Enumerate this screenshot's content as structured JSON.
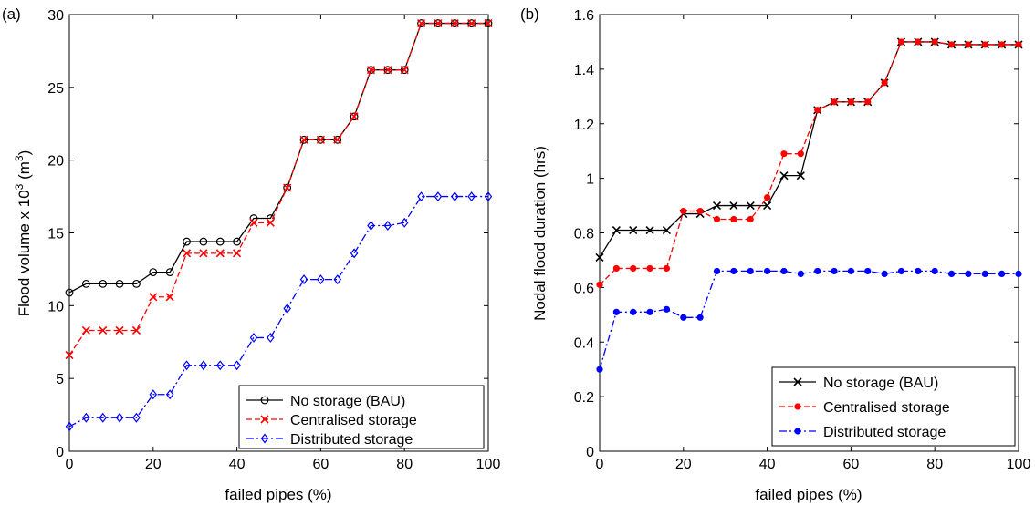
{
  "charts": [
    {
      "panel_label": "(a)",
      "ylabel_main": "Flood volume x 10",
      "ylabel_sup": "3",
      "ylabel_rest": " (m",
      "ylabel_sup2": "3",
      "ylabel_end": ")"
    },
    {
      "panel_label": "(b)",
      "ylabel": "Nodal flood duration (hrs)"
    }
  ],
  "chart_data": [
    {
      "type": "line",
      "xlabel": "failed pipes (%)",
      "xlim": [
        0,
        100
      ],
      "ylim": [
        0,
        30
      ],
      "xticks": [
        0,
        20,
        40,
        60,
        80,
        100
      ],
      "yticks": [
        0,
        5,
        10,
        15,
        20,
        25,
        30
      ],
      "ytick_labels": [
        "0",
        "5",
        "10",
        "15",
        "20",
        "25",
        "30"
      ],
      "legend_position": "bottom-right",
      "x": [
        0,
        4,
        8,
        12,
        16,
        20,
        24,
        28,
        32,
        36,
        40,
        44,
        48,
        52,
        56,
        60,
        64,
        68,
        72,
        76,
        80,
        84,
        88,
        92,
        96,
        100
      ],
      "series": [
        {
          "name": "No storage (BAU)",
          "color": "#000000",
          "line": "solid",
          "marker": "circle",
          "values": [
            10.9,
            11.5,
            11.5,
            11.5,
            11.5,
            12.3,
            12.3,
            14.4,
            14.4,
            14.4,
            14.4,
            16.0,
            16.0,
            18.1,
            21.4,
            21.4,
            21.4,
            23.0,
            26.2,
            26.2,
            26.2,
            29.4,
            29.4,
            29.4,
            29.4,
            29.4
          ]
        },
        {
          "name": "Centralised storage",
          "color": "#ff0000",
          "line": "dashed",
          "marker": "x",
          "values": [
            6.6,
            8.3,
            8.3,
            8.3,
            8.3,
            10.6,
            10.6,
            13.6,
            13.6,
            13.6,
            13.6,
            15.7,
            15.7,
            18.1,
            21.4,
            21.4,
            21.4,
            23.0,
            26.2,
            26.2,
            26.2,
            29.4,
            29.4,
            29.4,
            29.4,
            29.4
          ]
        },
        {
          "name": "Distributed storage",
          "color": "#0000ff",
          "line": "dashdot",
          "marker": "diamond",
          "values": [
            1.7,
            2.3,
            2.3,
            2.3,
            2.3,
            3.9,
            3.9,
            5.9,
            5.9,
            5.9,
            5.9,
            7.8,
            7.8,
            9.8,
            11.8,
            11.8,
            11.8,
            13.6,
            15.5,
            15.5,
            15.7,
            17.5,
            17.5,
            17.5,
            17.5,
            17.5
          ]
        }
      ]
    },
    {
      "type": "line",
      "xlabel": "failed pipes (%)",
      "xlim": [
        0,
        100
      ],
      "ylim": [
        0,
        1.6
      ],
      "xticks": [
        0,
        20,
        40,
        60,
        80,
        100
      ],
      "yticks": [
        0,
        0.2,
        0.4,
        0.6,
        0.8,
        1.0,
        1.2,
        1.4,
        1.6
      ],
      "ytick_labels": [
        "0",
        "0.2",
        "0.4",
        "0.6",
        "0.8",
        "1",
        "1.2",
        "1.4",
        "1.6"
      ],
      "legend_position": "bottom-right",
      "x": [
        0,
        4,
        8,
        12,
        16,
        20,
        24,
        28,
        32,
        36,
        40,
        44,
        48,
        52,
        56,
        60,
        64,
        68,
        72,
        76,
        80,
        84,
        88,
        92,
        96,
        100
      ],
      "series": [
        {
          "name": "No storage (BAU)",
          "color": "#000000",
          "line": "solid",
          "marker": "x",
          "values": [
            0.71,
            0.81,
            0.81,
            0.81,
            0.81,
            0.87,
            0.87,
            0.9,
            0.9,
            0.9,
            0.9,
            1.01,
            1.01,
            1.25,
            1.28,
            1.28,
            1.28,
            1.35,
            1.5,
            1.5,
            1.5,
            1.49,
            1.49,
            1.49,
            1.49,
            1.49
          ]
        },
        {
          "name": "Centralised storage",
          "color": "#ff0000",
          "line": "dashed",
          "marker": "dot",
          "values": [
            0.61,
            0.67,
            0.67,
            0.67,
            0.67,
            0.88,
            0.88,
            0.85,
            0.85,
            0.85,
            0.93,
            1.09,
            1.09,
            1.25,
            1.28,
            1.28,
            1.28,
            1.35,
            1.5,
            1.5,
            1.5,
            1.49,
            1.49,
            1.49,
            1.49,
            1.49
          ]
        },
        {
          "name": "Distributed storage",
          "color": "#0000ff",
          "line": "dashdot",
          "marker": "dot",
          "values": [
            0.3,
            0.51,
            0.51,
            0.51,
            0.52,
            0.49,
            0.49,
            0.66,
            0.66,
            0.66,
            0.66,
            0.66,
            0.65,
            0.66,
            0.66,
            0.66,
            0.66,
            0.65,
            0.66,
            0.66,
            0.66,
            0.65,
            0.65,
            0.65,
            0.65,
            0.65
          ]
        }
      ]
    }
  ]
}
